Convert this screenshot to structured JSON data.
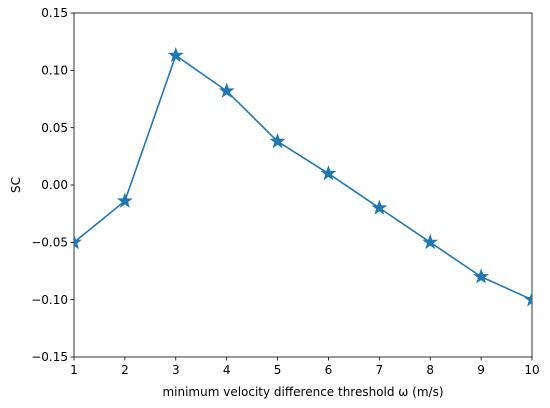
{
  "chart_data": {
    "type": "line",
    "xlabel": "minimum velocity difference threshold ω (m/s)",
    "ylabel": "SC",
    "xlim": [
      1,
      10
    ],
    "ylim": [
      -0.15,
      0.15
    ],
    "x_ticks": [
      1,
      2,
      3,
      4,
      5,
      6,
      7,
      8,
      9,
      10
    ],
    "y_ticks": [
      -0.15,
      -0.1,
      -0.05,
      0.0,
      0.05,
      0.1,
      0.15
    ],
    "x_tick_labels": [
      "1",
      "2",
      "3",
      "4",
      "5",
      "6",
      "7",
      "8",
      "9",
      "10"
    ],
    "y_tick_labels": [
      "−0.15",
      "−0.10",
      "−0.05",
      "0.00",
      "0.05",
      "0.10",
      "0.15"
    ],
    "grid": false,
    "marker": "star",
    "series": [
      {
        "color": "#1f77b4",
        "x": [
          1,
          2,
          3,
          4,
          5,
          6,
          7,
          8,
          9,
          10
        ],
        "y": [
          -0.05,
          -0.014,
          0.113,
          0.082,
          0.038,
          0.01,
          -0.02,
          -0.05,
          -0.08,
          -0.1
        ]
      }
    ]
  }
}
